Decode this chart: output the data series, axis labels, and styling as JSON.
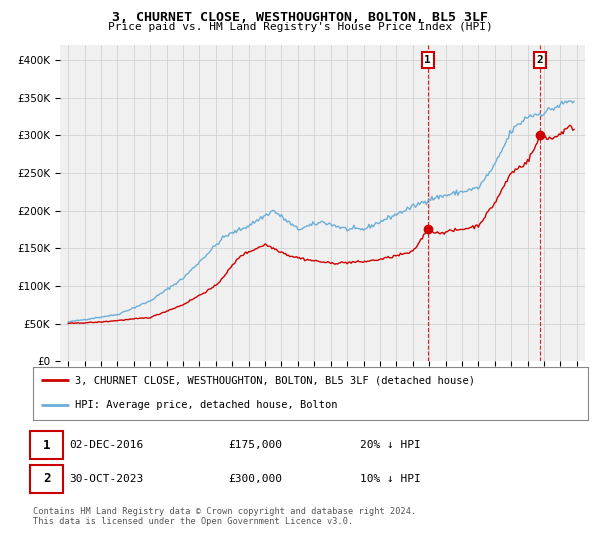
{
  "title": "3, CHURNET CLOSE, WESTHOUGHTON, BOLTON, BL5 3LF",
  "subtitle": "Price paid vs. HM Land Registry's House Price Index (HPI)",
  "hpi_label": "HPI: Average price, detached house, Bolton",
  "sale_label": "3, CHURNET CLOSE, WESTHOUGHTON, BOLTON, BL5 3LF (detached house)",
  "sale1_date": "02-DEC-2016",
  "sale1_price": 175000,
  "sale1_note": "20% ↓ HPI",
  "sale2_date": "30-OCT-2023",
  "sale2_price": 300000,
  "sale2_note": "10% ↓ HPI",
  "hpi_color": "#6baed6",
  "sale_color": "#cc0000",
  "vline_color": "#cc0000",
  "grid_color": "#cccccc",
  "bg_color": "#f0f0f0",
  "ylim": [
    0,
    420000
  ],
  "yticks": [
    0,
    50000,
    100000,
    150000,
    200000,
    250000,
    300000,
    350000,
    400000
  ],
  "xlim_start": 1994.5,
  "xlim_end": 2026.5,
  "footnote": "Contains HM Land Registry data © Crown copyright and database right 2024.\nThis data is licensed under the Open Government Licence v3.0."
}
